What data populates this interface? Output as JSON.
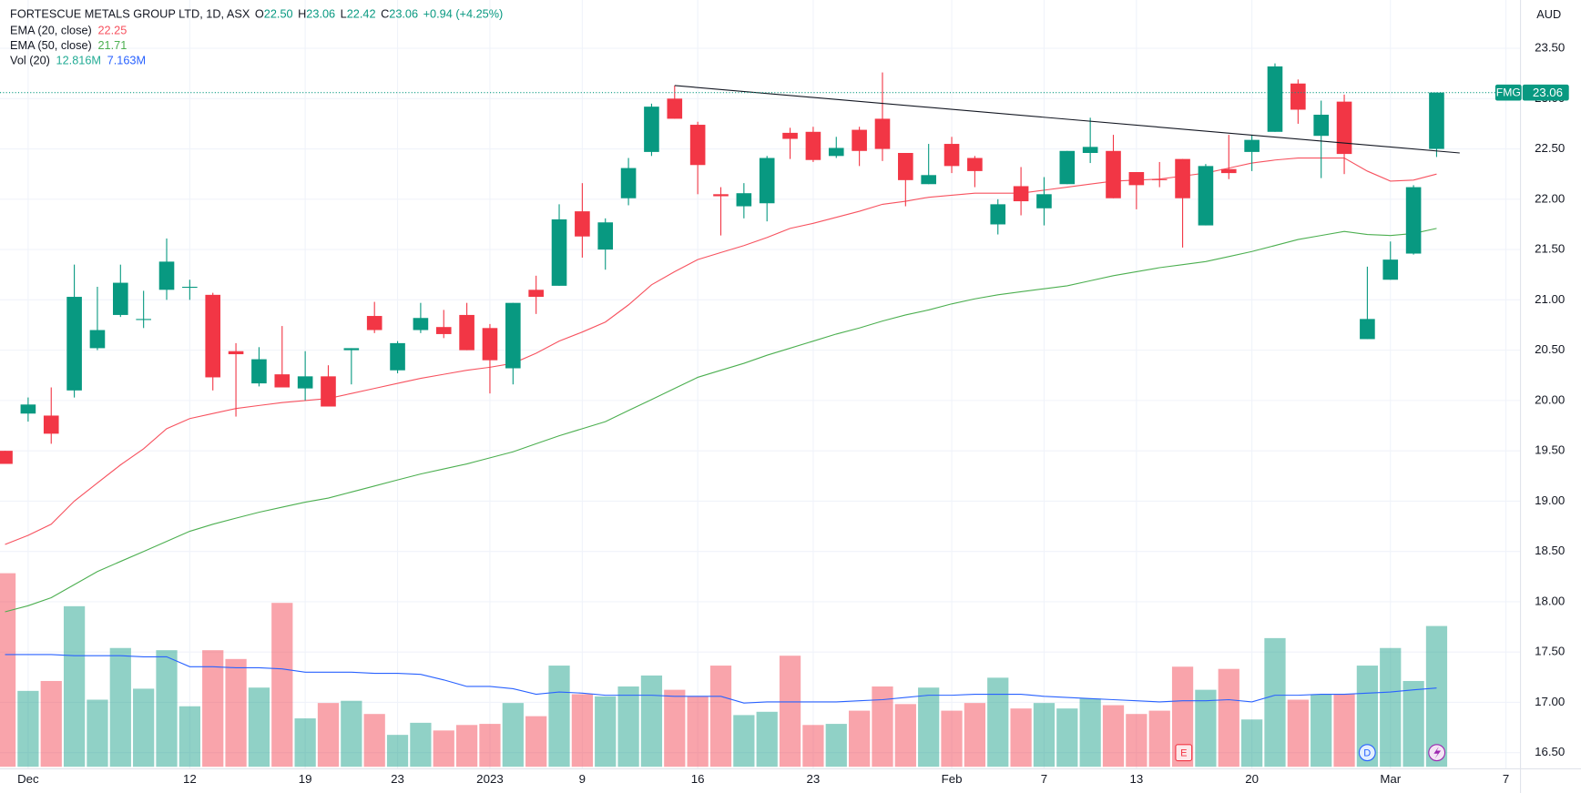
{
  "chart_data": {
    "type": "candlestick",
    "title": "FORTESCUE METALS GROUP LTD, 1D, ASX",
    "ohlc_legend": [
      {
        "label": "O",
        "value": "22.50"
      },
      {
        "label": "H",
        "value": "23.06"
      },
      {
        "label": "L",
        "value": "22.42"
      },
      {
        "label": "C",
        "value": "23.06"
      }
    ],
    "change_label": "+0.94 (+4.25%)",
    "currency": "AUD",
    "symbol": "FMG",
    "last_price": {
      "value": 23.06,
      "label": "23.06"
    },
    "up_color": "#089981",
    "down_color": "#f23645",
    "event_labels": [
      "E",
      "D"
    ],
    "categories": [
      null,
      "Dec",
      null,
      null,
      null,
      null,
      null,
      null,
      "12",
      null,
      null,
      null,
      null,
      "19",
      null,
      null,
      null,
      "23",
      null,
      null,
      null,
      "2023",
      null,
      null,
      null,
      "9",
      null,
      null,
      null,
      null,
      "16",
      null,
      null,
      null,
      null,
      "23",
      null,
      null,
      null,
      null,
      null,
      "Feb",
      null,
      null,
      null,
      "7",
      null,
      null,
      null,
      "13",
      null,
      null,
      null,
      null,
      "20",
      null,
      null,
      null,
      null,
      null,
      "Mar",
      null,
      null,
      null,
      null,
      "7"
    ],
    "open": [
      19.5,
      19.87,
      19.85,
      20.1,
      20.52,
      20.85,
      20.8,
      21.1,
      21.12,
      21.05,
      20.49,
      20.17,
      20.26,
      20.12,
      20.24,
      20.5,
      20.84,
      20.3,
      20.7,
      20.73,
      20.85,
      20.72,
      20.32,
      21.1,
      21.14,
      21.88,
      21.5,
      22.01,
      22.47,
      23.0,
      22.74,
      22.05,
      21.93,
      21.96,
      22.66,
      22.67,
      22.43,
      22.69,
      22.8,
      22.46,
      22.15,
      22.55,
      22.41,
      21.75,
      22.13,
      21.91,
      22.15,
      22.46,
      22.48,
      22.27,
      22.2,
      22.4,
      21.74,
      22.3,
      22.47,
      22.67,
      23.15,
      22.63,
      22.97,
      20.61,
      21.2,
      21.46,
      22.5,
      null,
      null,
      null
    ],
    "high": [
      19.5,
      20.03,
      20.13,
      21.35,
      21.13,
      21.35,
      21.09,
      21.61,
      21.2,
      21.07,
      20.57,
      20.53,
      20.74,
      20.49,
      20.35,
      20.52,
      20.98,
      20.59,
      20.97,
      20.9,
      20.97,
      20.76,
      20.97,
      21.24,
      21.95,
      22.16,
      21.81,
      22.41,
      22.95,
      23.13,
      22.77,
      22.12,
      22.16,
      22.43,
      22.71,
      22.72,
      22.62,
      22.72,
      23.26,
      22.46,
      22.55,
      22.62,
      22.43,
      22.0,
      22.32,
      22.22,
      22.48,
      22.81,
      22.64,
      22.27,
      22.37,
      22.4,
      22.35,
      22.64,
      22.64,
      23.35,
      23.19,
      22.98,
      23.04,
      21.33,
      21.58,
      22.14,
      23.06,
      null,
      null,
      null
    ],
    "low": [
      19.37,
      19.79,
      19.57,
      20.03,
      20.5,
      20.83,
      20.72,
      21.0,
      21.0,
      20.1,
      19.84,
      20.14,
      20.13,
      20.0,
      19.94,
      20.16,
      20.67,
      20.27,
      20.67,
      20.62,
      20.5,
      20.07,
      20.16,
      20.86,
      21.14,
      21.42,
      21.3,
      21.94,
      22.43,
      22.8,
      22.05,
      21.64,
      21.81,
      21.78,
      22.4,
      22.37,
      22.41,
      22.33,
      22.38,
      21.93,
      22.15,
      22.26,
      22.12,
      21.65,
      21.84,
      21.74,
      22.15,
      22.36,
      22.01,
      21.9,
      22.12,
      21.52,
      21.74,
      22.2,
      22.28,
      22.67,
      22.75,
      22.21,
      22.25,
      20.61,
      21.2,
      21.45,
      22.42,
      null,
      null,
      null
    ],
    "close": [
      19.37,
      19.96,
      19.67,
      21.03,
      20.7,
      21.17,
      20.81,
      21.38,
      21.13,
      20.23,
      20.46,
      20.41,
      20.13,
      20.24,
      19.94,
      20.52,
      20.7,
      20.57,
      20.82,
      20.66,
      20.5,
      20.4,
      20.97,
      21.03,
      21.8,
      21.63,
      21.77,
      22.31,
      22.92,
      22.8,
      22.34,
      22.03,
      22.06,
      22.41,
      22.6,
      22.39,
      22.51,
      22.48,
      22.5,
      22.19,
      22.24,
      22.33,
      22.28,
      21.95,
      21.98,
      22.05,
      22.48,
      22.52,
      22.01,
      22.14,
      22.19,
      22.01,
      22.33,
      22.26,
      22.59,
      23.32,
      22.89,
      22.84,
      22.45,
      20.81,
      21.4,
      22.12,
      23.06,
      null,
      null,
      null
    ],
    "series": [
      {
        "name": "EMA (20, close)",
        "color": "#f7525f",
        "legend_value": "22.25",
        "values": [
          18.57,
          18.66,
          18.77,
          19.0,
          19.18,
          19.36,
          19.52,
          19.72,
          19.82,
          19.87,
          19.92,
          19.95,
          19.98,
          20.0,
          20.02,
          20.07,
          20.12,
          20.17,
          20.22,
          20.26,
          20.3,
          20.33,
          20.37,
          20.47,
          20.59,
          20.68,
          20.78,
          20.95,
          21.15,
          21.28,
          21.4,
          21.47,
          21.54,
          21.62,
          21.71,
          21.76,
          21.82,
          21.88,
          21.95,
          21.98,
          22.02,
          22.04,
          22.06,
          22.06,
          22.06,
          22.09,
          22.12,
          22.15,
          22.18,
          22.19,
          22.2,
          22.23,
          22.26,
          22.31,
          22.36,
          22.39,
          22.41,
          22.41,
          22.41,
          22.28,
          22.18,
          22.19,
          22.25,
          null,
          null,
          null
        ]
      },
      {
        "name": "EMA (50, close)",
        "color": "#4caf50",
        "legend_value": "21.71",
        "values": [
          17.9,
          17.96,
          18.04,
          18.17,
          18.3,
          18.4,
          18.5,
          18.6,
          18.7,
          18.77,
          18.83,
          18.89,
          18.94,
          18.99,
          19.03,
          19.09,
          19.15,
          19.21,
          19.27,
          19.32,
          19.37,
          19.43,
          19.49,
          19.57,
          19.65,
          19.72,
          19.79,
          19.9,
          20.01,
          20.12,
          20.23,
          20.3,
          20.37,
          20.45,
          20.52,
          20.59,
          20.66,
          20.72,
          20.79,
          20.85,
          20.9,
          20.96,
          21.01,
          21.05,
          21.08,
          21.11,
          21.14,
          21.19,
          21.24,
          21.28,
          21.32,
          21.35,
          21.38,
          21.43,
          21.48,
          21.54,
          21.6,
          21.64,
          21.68,
          21.65,
          21.64,
          21.66,
          21.71,
          null,
          null,
          null
        ]
      }
    ],
    "volume": {
      "name": "Vol (20)",
      "axis": "y2",
      "legend_value": "12.816M",
      "ma_legend_value": "7.163M",
      "ma_color": "#2962ff",
      "values": [
        17.6,
        6.9,
        7.8,
        14.6,
        6.1,
        10.8,
        7.1,
        10.6,
        5.5,
        10.6,
        9.8,
        7.2,
        14.9,
        4.4,
        5.8,
        6.0,
        4.8,
        2.9,
        4.0,
        3.3,
        3.8,
        3.9,
        5.8,
        4.6,
        9.2,
        6.6,
        6.4,
        7.3,
        8.3,
        7.0,
        6.4,
        9.2,
        4.7,
        5.0,
        10.1,
        3.8,
        3.9,
        5.1,
        7.3,
        5.7,
        7.2,
        5.1,
        5.8,
        8.1,
        5.3,
        5.8,
        5.3,
        6.2,
        5.6,
        4.8,
        5.1,
        9.1,
        7.0,
        8.9,
        4.3,
        11.7,
        6.1,
        6.6,
        6.6,
        9.2,
        10.8,
        7.8,
        12.8,
        null,
        null,
        null
      ],
      "ma_values": [
        10.2,
        10.2,
        10.2,
        10.1,
        10.1,
        10.1,
        10.0,
        10.0,
        9.1,
        9.1,
        9.0,
        9.0,
        8.9,
        8.6,
        8.6,
        8.6,
        8.5,
        8.5,
        8.4,
        7.9,
        7.3,
        7.3,
        7.1,
        6.6,
        6.8,
        6.7,
        6.5,
        6.5,
        6.5,
        6.4,
        6.4,
        6.4,
        5.8,
        5.9,
        5.9,
        5.9,
        5.9,
        6.0,
        6.1,
        6.3,
        6.5,
        6.5,
        6.6,
        6.6,
        6.6,
        6.4,
        6.3,
        6.2,
        6.1,
        6.0,
        5.9,
        6.0,
        6.0,
        6.1,
        5.9,
        6.5,
        6.5,
        6.6,
        6.6,
        6.7,
        6.8,
        7.0,
        7.163,
        null,
        null,
        null
      ]
    },
    "trendline": {
      "x": [
        29,
        63
      ],
      "y": [
        23.13,
        22.46
      ],
      "color": "#131722"
    },
    "ylim": [
      16.36,
      23.98
    ],
    "y2lim": [
      0,
      20
    ],
    "yticks": [
      {
        "value": 16.5,
        "label": "16.50"
      },
      {
        "value": 17,
        "label": "17.00"
      },
      {
        "value": 17.5,
        "label": "17.50"
      },
      {
        "value": 18,
        "label": "18.00"
      },
      {
        "value": 18.5,
        "label": "18.50"
      },
      {
        "value": 19,
        "label": "19.00"
      },
      {
        "value": 19.5,
        "label": "19.50"
      },
      {
        "value": 20,
        "label": "20.00"
      },
      {
        "value": 20.5,
        "label": "20.50"
      },
      {
        "value": 21,
        "label": "21.00"
      },
      {
        "value": 21.5,
        "label": "21.50"
      },
      {
        "value": 22,
        "label": "22.00"
      },
      {
        "value": 22.5,
        "label": "22.50"
      },
      {
        "value": 23,
        "label": "23.00"
      },
      {
        "value": 23.5,
        "label": "23.50"
      }
    ],
    "grid": true
  }
}
